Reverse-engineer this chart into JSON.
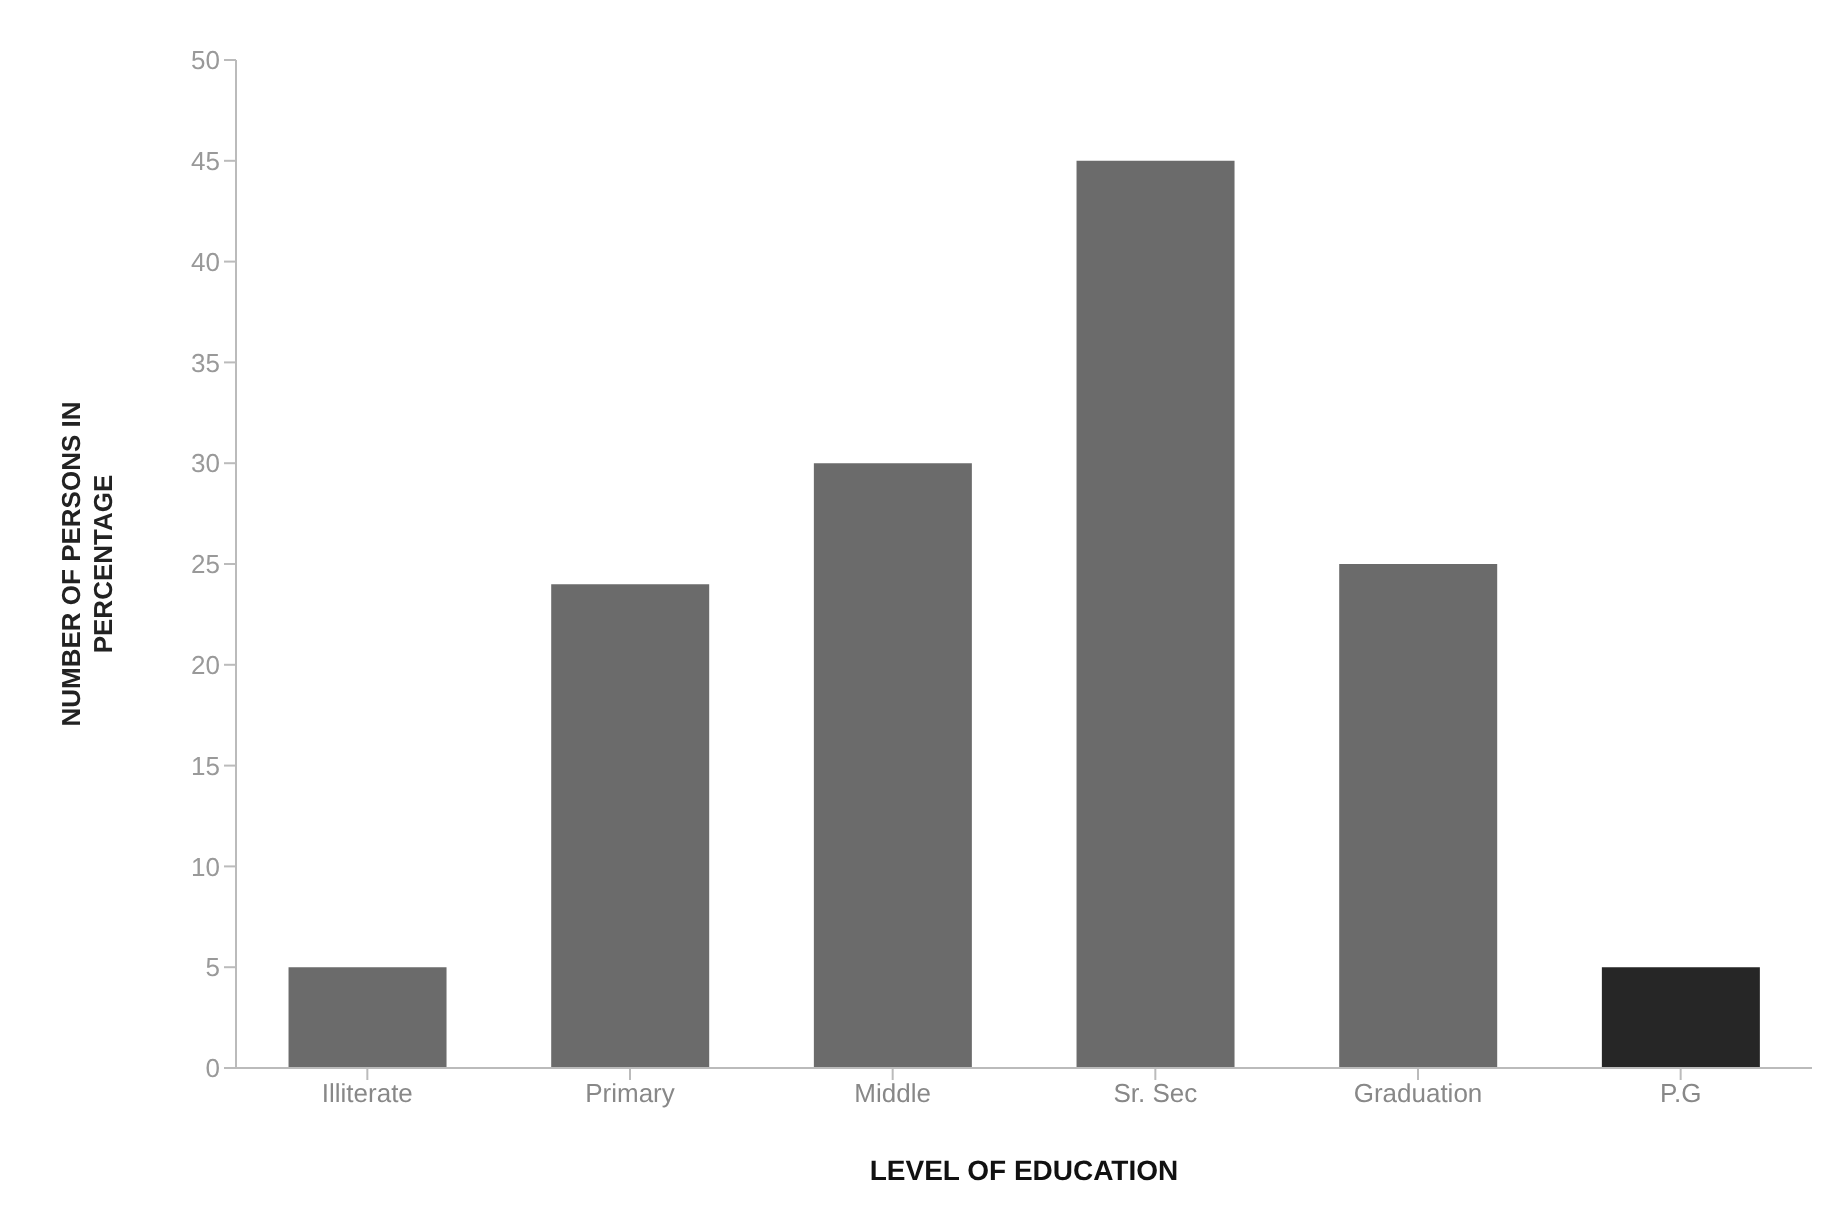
{
  "chart_data": {
    "type": "bar",
    "xlabel": "LEVEL OF EDUCATION",
    "ylabel": "NUMBER OF PERSONS IN PERCENTAGE",
    "categories": [
      "Illiterate",
      "Primary",
      "Middle",
      "Sr. Sec",
      "Graduation",
      "P.G"
    ],
    "values": [
      5,
      24,
      30,
      45,
      25,
      5
    ],
    "colors": [
      "#6b6b6b",
      "#6b6b6b",
      "#6b6b6b",
      "#6b6b6b",
      "#6b6b6b",
      "#262626"
    ],
    "ylim": [
      0,
      50
    ],
    "yticks": [
      0,
      5,
      10,
      15,
      20,
      25,
      30,
      35,
      40,
      45,
      50
    ],
    "grid": false
  }
}
